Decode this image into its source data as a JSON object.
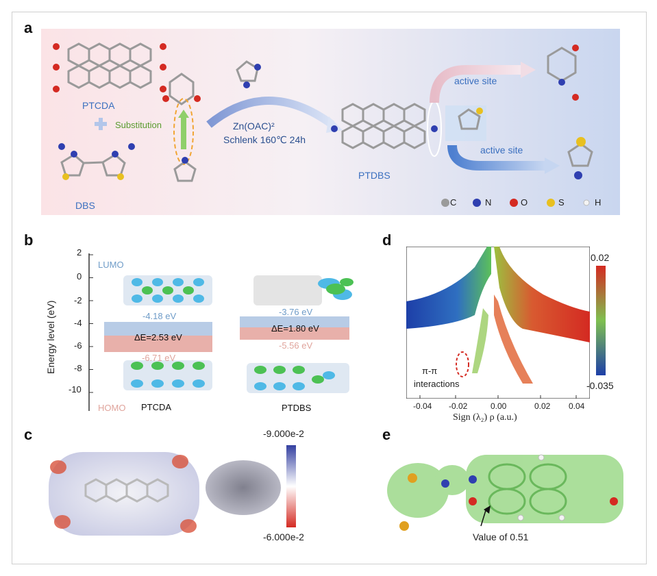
{
  "panels": {
    "a": {
      "letter": "a",
      "ptcda_label": "PTCDA",
      "dbs_label": "DBS",
      "substitution_label": "Substitution",
      "reaction_line1": "Zn(OAC)²",
      "reaction_line2": "Schlenk 160℃ 24h",
      "ptdbs_label": "PTDBS",
      "active_site_top": "active site",
      "active_site_bottom": "active site",
      "legend": [
        {
          "symbol": "C",
          "color": "#9a9a9a"
        },
        {
          "symbol": "N",
          "color": "#2f3fb0"
        },
        {
          "symbol": "O",
          "color": "#d42a22"
        },
        {
          "symbol": "S",
          "color": "#e8c020"
        },
        {
          "symbol": "H",
          "color": "#f4f4f4"
        }
      ]
    },
    "b": {
      "letter": "b",
      "y_axis_label": "Energy level (eV)",
      "y_ticks": [
        "2",
        "0",
        "-2",
        "-4",
        "-6",
        "-8",
        "-10"
      ],
      "lumo_label": "LUMO",
      "homo_label": "HOMO",
      "ptcda": {
        "lumo": "-4.18 eV",
        "homo": "-6.71 eV",
        "gap": "ΔE=2.53 eV",
        "name": "PTCDA"
      },
      "ptdbs": {
        "lumo": "-3.76 eV",
        "homo": "-5.56 eV",
        "gap": "ΔE=1.80 eV",
        "name": "PTDBS"
      },
      "colors": {
        "lumo": "#7fa8d0",
        "homo": "#e09a90"
      }
    },
    "c": {
      "letter": "c",
      "scale_max": "-9.000e-2",
      "scale_min": "-6.000e-2"
    },
    "d": {
      "letter": "d",
      "x_axis_label": "Sign (λ₂) ρ (a.u.)",
      "x_ticks": [
        "-0.04",
        "-0.02",
        "0.00",
        "0.02",
        "0.04"
      ],
      "colorbar_max": "0.02",
      "colorbar_min": "-0.035",
      "annotation_line1": "π-π",
      "annotation_line2": "interactions"
    },
    "e": {
      "letter": "e",
      "annotation": "Value of 0.51"
    }
  },
  "chart_data": {
    "type": "scatter",
    "x_label": "Sign (λ₂) ρ (a.u.)",
    "xlim": [
      -0.05,
      0.05
    ],
    "x_ticks": [
      -0.04,
      -0.02,
      0.0,
      0.02,
      0.04
    ],
    "colorbar_range": [
      -0.035,
      0.02
    ],
    "annotation": "π-π interactions",
    "grid": false
  }
}
